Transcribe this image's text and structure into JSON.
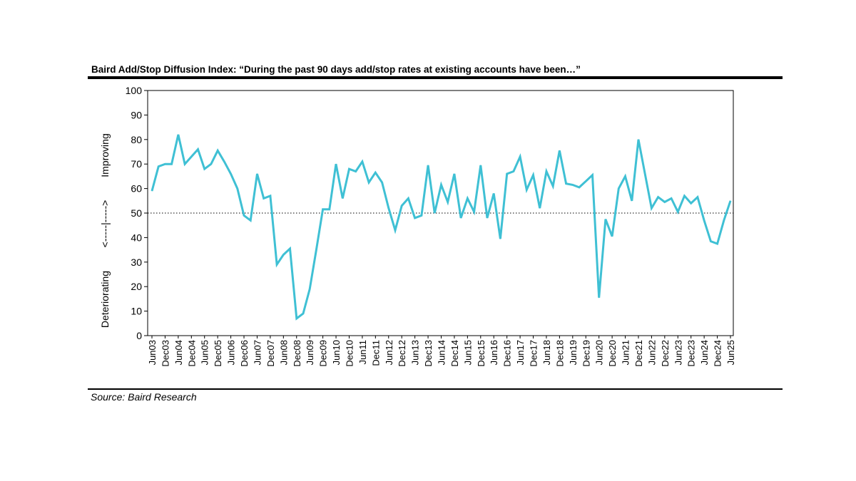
{
  "title": "Baird Add/Stop Diffusion Index: “During the past 90 days add/stop rates at existing accounts have been…”",
  "source": "Source: Baird Research",
  "chart_data": {
    "type": "line",
    "ylim": [
      0,
      100
    ],
    "yticks": [
      0,
      10,
      20,
      30,
      40,
      50,
      60,
      70,
      80,
      90,
      100
    ],
    "ylabel_parts": {
      "bottom": "Deteriorating",
      "middle": "<-----|----->",
      "top": "Improving"
    },
    "reference_line": 50,
    "line_color": "#3fc0d4",
    "x_tick_labels": [
      "Jun03",
      "Dec03",
      "Jun04",
      "Dec04",
      "Jun05",
      "Dec05",
      "Jun06",
      "Dec06",
      "Jun07",
      "Dec07",
      "Jun08",
      "Dec08",
      "Jun09",
      "Dec09",
      "Jun10",
      "Dec10",
      "Jun11",
      "Dec11",
      "Jun12",
      "Dec12",
      "Jun13",
      "Dec13",
      "Jun14",
      "Dec14",
      "Jun15",
      "Dec15",
      "Jun16",
      "Dec16",
      "Jun17",
      "Dec17",
      "Jun18",
      "Dec18",
      "Jun19",
      "Dec19",
      "Jun20",
      "Dec20",
      "Jun21",
      "Dec21",
      "Jun22",
      "Dec22",
      "Jun23",
      "Dec23",
      "Jun24",
      "Dec24",
      "Jun25"
    ],
    "series": [
      {
        "values": [
          59,
          69,
          70,
          70,
          82,
          70,
          73,
          76,
          68,
          70,
          75.5,
          71,
          66,
          60,
          49,
          47,
          66,
          56,
          57,
          29,
          33,
          35.5,
          7,
          9,
          19,
          35,
          51.5,
          51.5,
          70,
          56,
          68,
          67,
          71,
          62.5,
          66.5,
          62.5,
          52,
          43,
          53,
          56,
          48,
          49,
          69.5,
          50,
          61.5,
          54.5,
          66,
          48,
          56,
          50.5,
          69.5,
          48,
          58,
          39.5,
          66,
          67,
          73,
          59.5,
          65.5,
          52,
          67,
          61,
          75.5,
          62,
          61.5,
          60.5,
          63,
          65.5,
          15.5,
          47.5,
          40.5,
          60,
          65,
          55,
          80,
          66,
          52,
          56.5,
          54.5,
          56,
          50.5,
          57,
          54,
          56.5,
          47,
          38.5,
          37.5,
          47,
          55
        ]
      }
    ]
  }
}
